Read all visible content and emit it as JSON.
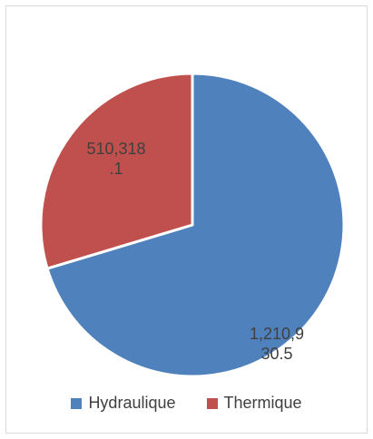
{
  "chart_data": {
    "type": "pie",
    "categories": [
      "Hydraulique",
      "Thermique"
    ],
    "values": [
      1210930.5,
      510318.1
    ],
    "data_labels": [
      [
        "1,210,9",
        "30.5"
      ],
      [
        ".1",
        "510,318"
      ]
    ],
    "colors": [
      "#4f81bd",
      "#c0504d"
    ],
    "legend_position": "bottom",
    "title": ""
  }
}
